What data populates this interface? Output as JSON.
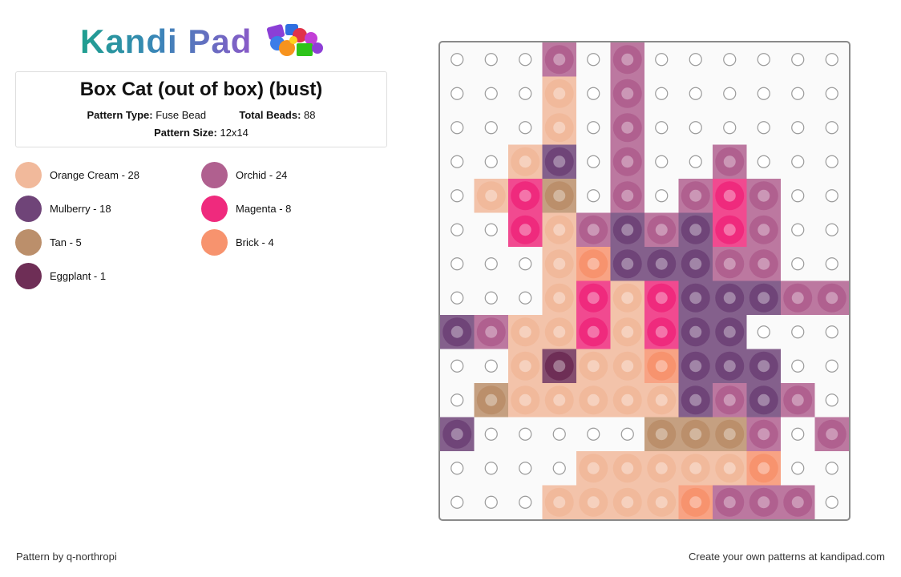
{
  "logo": {
    "text": "Kandi Pad"
  },
  "pattern": {
    "title": "Box Cat (out of box) (bust)",
    "type_label": "Pattern Type:",
    "type_value": "Fuse Bead",
    "beads_label": "Total Beads:",
    "beads_value": "88",
    "size_label": "Pattern Size:",
    "size_value": "12x14"
  },
  "legend": [
    {
      "label": "Orange Cream - 28",
      "color": "#f1b99b"
    },
    {
      "label": "Orchid - 24",
      "color": "#b0608f"
    },
    {
      "label": "Mulberry - 18",
      "color": "#6f4478"
    },
    {
      "label": "Magenta - 8",
      "color": "#ef2a7d"
    },
    {
      "label": "Tan - 5",
      "color": "#bb8f6b"
    },
    {
      "label": "Brick - 4",
      "color": "#f7936e"
    },
    {
      "label": "Eggplant - 1",
      "color": "#6e2e56"
    }
  ],
  "board": {
    "cols": 12,
    "rows": 14,
    "palette": {
      "O": "#f1b99b",
      "R": "#b0608f",
      "M": "#6f4478",
      "G": "#ef2a7d",
      "T": "#bb8f6b",
      "B": "#f7936e",
      "E": "#6e2e56"
    },
    "grid": [
      "...R.R......",
      "...O.R......",
      "...O.R......",
      "..OM.R..R...",
      ".OGT.R.RGR..",
      "..GORMRMGR..",
      "...OBMMMRR..",
      "...OGOGMMMRR",
      "MROOGOGMM...",
      "..OEOOBMMM..",
      ".TOOOOOMRMR.",
      "M.....TTTR.R",
      "....OOOOOB..",
      "...OOOOBRRR."
    ]
  },
  "footer": {
    "left": "Pattern by q-northropi",
    "right": "Create your own patterns at kandipad.com"
  }
}
